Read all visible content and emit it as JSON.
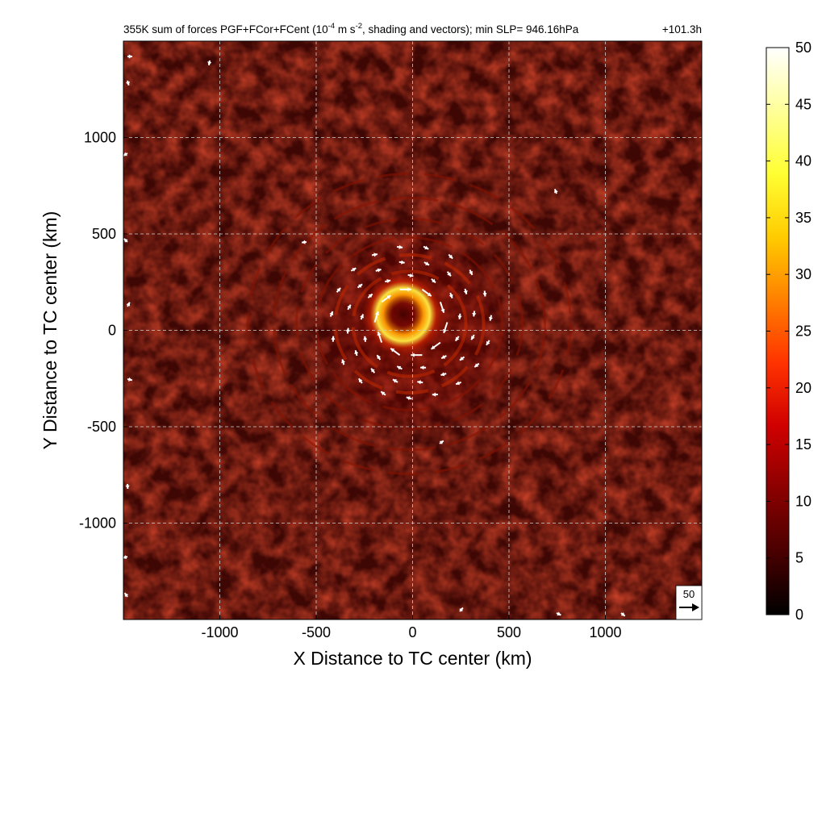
{
  "chart_data": {
    "type": "heatmap",
    "title_parts": {
      "prefix": "355K sum of forces PGF+FCor+FCent (10",
      "exponent1": "-4",
      "middle": " m s",
      "exponent2": "-2",
      "suffix": ", shading and vectors); min SLP= 946.16hPa"
    },
    "time_label": "+101.3h",
    "xlabel": "X Distance to TC center (km)",
    "ylabel": "Y Distance to TC center (km)",
    "xlim": [
      -1500,
      1500
    ],
    "ylim": [
      -1500,
      1500
    ],
    "x_ticks": [
      -1000,
      -500,
      0,
      500,
      1000
    ],
    "y_ticks": [
      -1000,
      -500,
      0,
      500,
      1000
    ],
    "grid": true,
    "grid_style": "dashed",
    "colorbar": {
      "min": 0,
      "max": 50,
      "ticks": [
        0,
        5,
        10,
        15,
        20,
        25,
        30,
        35,
        40,
        45,
        50
      ],
      "colormap": "hot",
      "colors": [
        "#000000",
        "#4a0000",
        "#8b0000",
        "#d00000",
        "#ff3300",
        "#ff8000",
        "#ffcc00",
        "#ffff33",
        "#ffff99",
        "#ffffff"
      ]
    },
    "reference_vector": {
      "label": "50",
      "magnitude": 50
    },
    "field_description_values": {
      "background_level": 5,
      "eyewall_peak": 45,
      "eyewall_radius_km": 100,
      "center_km": [
        0,
        0
      ]
    }
  }
}
